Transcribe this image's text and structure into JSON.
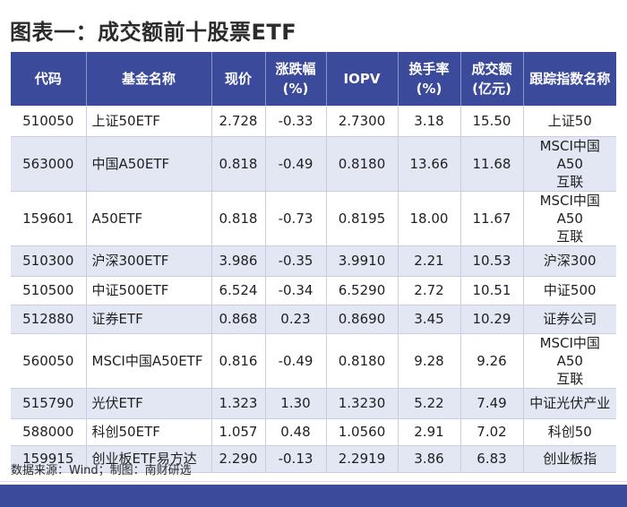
{
  "title": "图表一：成交额前十股票ETF",
  "table": {
    "headers": [
      [
        "代码"
      ],
      [
        "基金名称"
      ],
      [
        "现价"
      ],
      [
        "涨跌幅",
        "(%)"
      ],
      [
        "IOPV"
      ],
      [
        "换手率",
        "(%)"
      ],
      [
        "成交额",
        "(亿元)"
      ],
      [
        "跟踪指数名称"
      ]
    ],
    "rows": [
      {
        "code": "510050",
        "name": "上证50ETF",
        "price": "2.728",
        "change": "-0.33",
        "iopv": "2.7300",
        "turnover": "3.18",
        "volume": "15.50",
        "index": [
          "上证50"
        ]
      },
      {
        "code": "563000",
        "name": "中国A50ETF",
        "price": "0.818",
        "change": "-0.49",
        "iopv": "0.8180",
        "turnover": "13.66",
        "volume": "11.68",
        "index": [
          "MSCI中国A50",
          "互联"
        ]
      },
      {
        "code": "159601",
        "name": "A50ETF",
        "price": "0.818",
        "change": "-0.73",
        "iopv": "0.8195",
        "turnover": "18.00",
        "volume": "11.67",
        "index": [
          "MSCI中国A50",
          "互联"
        ]
      },
      {
        "code": "510300",
        "name": "沪深300ETF",
        "price": "3.986",
        "change": "-0.35",
        "iopv": "3.9910",
        "turnover": "2.21",
        "volume": "10.53",
        "index": [
          "沪深300"
        ]
      },
      {
        "code": "510500",
        "name": "中证500ETF",
        "price": "6.524",
        "change": "-0.34",
        "iopv": "6.5290",
        "turnover": "2.72",
        "volume": "10.51",
        "index": [
          "中证500"
        ]
      },
      {
        "code": "512880",
        "name": "证券ETF",
        "price": "0.868",
        "change": "0.23",
        "iopv": "0.8690",
        "turnover": "3.45",
        "volume": "10.29",
        "index": [
          "证券公司"
        ]
      },
      {
        "code": "560050",
        "name": "MSCI中国A50ETF",
        "price": "0.816",
        "change": "-0.49",
        "iopv": "0.8180",
        "turnover": "9.28",
        "volume": "9.26",
        "index": [
          "MSCI中国A50",
          "互联"
        ]
      },
      {
        "code": "515790",
        "name": "光伏ETF",
        "price": "1.323",
        "change": "1.30",
        "iopv": "1.3230",
        "turnover": "5.22",
        "volume": "7.49",
        "index": [
          "中证光伏产业"
        ]
      },
      {
        "code": "588000",
        "name": "科创50ETF",
        "price": "1.057",
        "change": "0.48",
        "iopv": "1.0560",
        "turnover": "2.91",
        "volume": "7.02",
        "index": [
          "科创50"
        ]
      },
      {
        "code": "159915",
        "name": "创业板ETF易方达",
        "price": "2.290",
        "change": "-0.13",
        "iopv": "2.2919",
        "turnover": "3.86",
        "volume": "6.83",
        "index": [
          "创业板指"
        ]
      }
    ]
  },
  "source": "数据来源：Wind；制图：南财研选",
  "colors": {
    "header_bg": "#3b4a9b",
    "row_alt_bg": "#e3e7f4",
    "footer_band": "#3b4a9b"
  }
}
